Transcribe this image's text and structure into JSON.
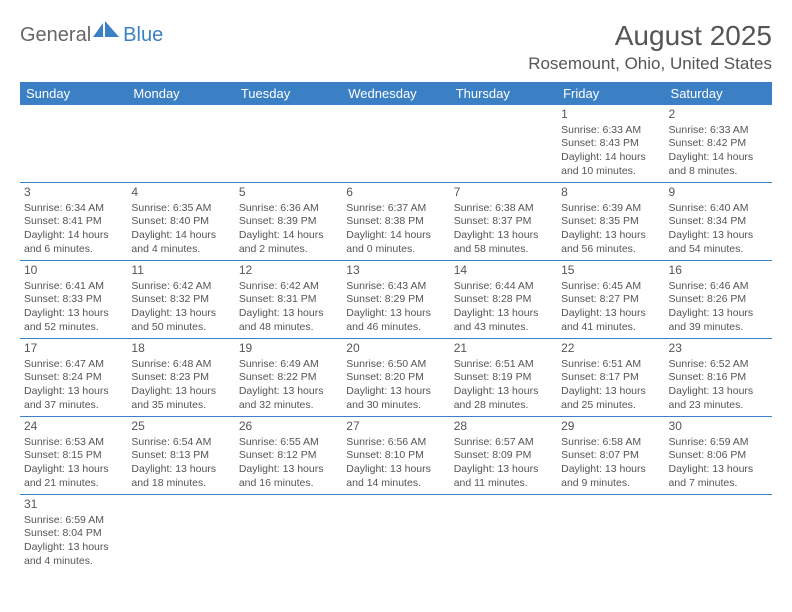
{
  "logo": {
    "general": "General",
    "blue": "Blue"
  },
  "title": "August 2025",
  "location": "Rosemount, Ohio, United States",
  "colors": {
    "header_bg": "#3b7fc4",
    "header_text": "#ffffff",
    "border": "#3b7fc4",
    "text": "#555555"
  },
  "dayHeaders": [
    "Sunday",
    "Monday",
    "Tuesday",
    "Wednesday",
    "Thursday",
    "Friday",
    "Saturday"
  ],
  "weeks": [
    [
      null,
      null,
      null,
      null,
      null,
      {
        "n": "1",
        "sr": "Sunrise: 6:33 AM",
        "ss": "Sunset: 8:43 PM",
        "dl": "Daylight: 14 hours and 10 minutes."
      },
      {
        "n": "2",
        "sr": "Sunrise: 6:33 AM",
        "ss": "Sunset: 8:42 PM",
        "dl": "Daylight: 14 hours and 8 minutes."
      }
    ],
    [
      {
        "n": "3",
        "sr": "Sunrise: 6:34 AM",
        "ss": "Sunset: 8:41 PM",
        "dl": "Daylight: 14 hours and 6 minutes."
      },
      {
        "n": "4",
        "sr": "Sunrise: 6:35 AM",
        "ss": "Sunset: 8:40 PM",
        "dl": "Daylight: 14 hours and 4 minutes."
      },
      {
        "n": "5",
        "sr": "Sunrise: 6:36 AM",
        "ss": "Sunset: 8:39 PM",
        "dl": "Daylight: 14 hours and 2 minutes."
      },
      {
        "n": "6",
        "sr": "Sunrise: 6:37 AM",
        "ss": "Sunset: 8:38 PM",
        "dl": "Daylight: 14 hours and 0 minutes."
      },
      {
        "n": "7",
        "sr": "Sunrise: 6:38 AM",
        "ss": "Sunset: 8:37 PM",
        "dl": "Daylight: 13 hours and 58 minutes."
      },
      {
        "n": "8",
        "sr": "Sunrise: 6:39 AM",
        "ss": "Sunset: 8:35 PM",
        "dl": "Daylight: 13 hours and 56 minutes."
      },
      {
        "n": "9",
        "sr": "Sunrise: 6:40 AM",
        "ss": "Sunset: 8:34 PM",
        "dl": "Daylight: 13 hours and 54 minutes."
      }
    ],
    [
      {
        "n": "10",
        "sr": "Sunrise: 6:41 AM",
        "ss": "Sunset: 8:33 PM",
        "dl": "Daylight: 13 hours and 52 minutes."
      },
      {
        "n": "11",
        "sr": "Sunrise: 6:42 AM",
        "ss": "Sunset: 8:32 PM",
        "dl": "Daylight: 13 hours and 50 minutes."
      },
      {
        "n": "12",
        "sr": "Sunrise: 6:42 AM",
        "ss": "Sunset: 8:31 PM",
        "dl": "Daylight: 13 hours and 48 minutes."
      },
      {
        "n": "13",
        "sr": "Sunrise: 6:43 AM",
        "ss": "Sunset: 8:29 PM",
        "dl": "Daylight: 13 hours and 46 minutes."
      },
      {
        "n": "14",
        "sr": "Sunrise: 6:44 AM",
        "ss": "Sunset: 8:28 PM",
        "dl": "Daylight: 13 hours and 43 minutes."
      },
      {
        "n": "15",
        "sr": "Sunrise: 6:45 AM",
        "ss": "Sunset: 8:27 PM",
        "dl": "Daylight: 13 hours and 41 minutes."
      },
      {
        "n": "16",
        "sr": "Sunrise: 6:46 AM",
        "ss": "Sunset: 8:26 PM",
        "dl": "Daylight: 13 hours and 39 minutes."
      }
    ],
    [
      {
        "n": "17",
        "sr": "Sunrise: 6:47 AM",
        "ss": "Sunset: 8:24 PM",
        "dl": "Daylight: 13 hours and 37 minutes."
      },
      {
        "n": "18",
        "sr": "Sunrise: 6:48 AM",
        "ss": "Sunset: 8:23 PM",
        "dl": "Daylight: 13 hours and 35 minutes."
      },
      {
        "n": "19",
        "sr": "Sunrise: 6:49 AM",
        "ss": "Sunset: 8:22 PM",
        "dl": "Daylight: 13 hours and 32 minutes."
      },
      {
        "n": "20",
        "sr": "Sunrise: 6:50 AM",
        "ss": "Sunset: 8:20 PM",
        "dl": "Daylight: 13 hours and 30 minutes."
      },
      {
        "n": "21",
        "sr": "Sunrise: 6:51 AM",
        "ss": "Sunset: 8:19 PM",
        "dl": "Daylight: 13 hours and 28 minutes."
      },
      {
        "n": "22",
        "sr": "Sunrise: 6:51 AM",
        "ss": "Sunset: 8:17 PM",
        "dl": "Daylight: 13 hours and 25 minutes."
      },
      {
        "n": "23",
        "sr": "Sunrise: 6:52 AM",
        "ss": "Sunset: 8:16 PM",
        "dl": "Daylight: 13 hours and 23 minutes."
      }
    ],
    [
      {
        "n": "24",
        "sr": "Sunrise: 6:53 AM",
        "ss": "Sunset: 8:15 PM",
        "dl": "Daylight: 13 hours and 21 minutes."
      },
      {
        "n": "25",
        "sr": "Sunrise: 6:54 AM",
        "ss": "Sunset: 8:13 PM",
        "dl": "Daylight: 13 hours and 18 minutes."
      },
      {
        "n": "26",
        "sr": "Sunrise: 6:55 AM",
        "ss": "Sunset: 8:12 PM",
        "dl": "Daylight: 13 hours and 16 minutes."
      },
      {
        "n": "27",
        "sr": "Sunrise: 6:56 AM",
        "ss": "Sunset: 8:10 PM",
        "dl": "Daylight: 13 hours and 14 minutes."
      },
      {
        "n": "28",
        "sr": "Sunrise: 6:57 AM",
        "ss": "Sunset: 8:09 PM",
        "dl": "Daylight: 13 hours and 11 minutes."
      },
      {
        "n": "29",
        "sr": "Sunrise: 6:58 AM",
        "ss": "Sunset: 8:07 PM",
        "dl": "Daylight: 13 hours and 9 minutes."
      },
      {
        "n": "30",
        "sr": "Sunrise: 6:59 AM",
        "ss": "Sunset: 8:06 PM",
        "dl": "Daylight: 13 hours and 7 minutes."
      }
    ],
    [
      {
        "n": "31",
        "sr": "Sunrise: 6:59 AM",
        "ss": "Sunset: 8:04 PM",
        "dl": "Daylight: 13 hours and 4 minutes."
      },
      null,
      null,
      null,
      null,
      null,
      null
    ]
  ]
}
